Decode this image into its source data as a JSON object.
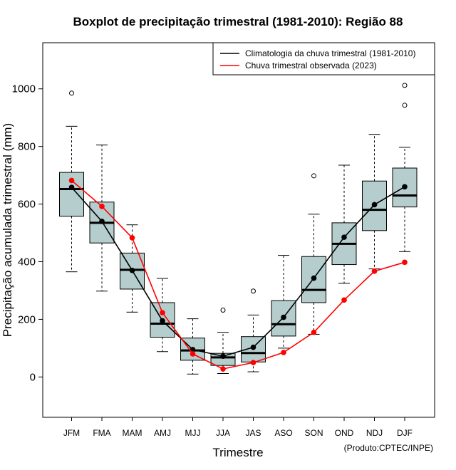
{
  "chart_data": {
    "type": "boxplot",
    "title": "Boxplot de precipitação trimestral (1981-2010): Região 88",
    "xlabel": "Trimestre",
    "ylabel": "Precipitação acumulada trimestral (mm)",
    "ylim": [
      -140,
      1160
    ],
    "yticks": [
      0,
      200,
      400,
      600,
      800,
      1000
    ],
    "categories": [
      "JFM",
      "FMA",
      "MAM",
      "AMJ",
      "MJJ",
      "JJA",
      "JAS",
      "ASO",
      "SON",
      "OND",
      "NDJ",
      "DJF"
    ],
    "boxes": [
      {
        "whisker_low": 365,
        "q1": 558,
        "median": 652,
        "q3": 710,
        "whisker_high": 870,
        "outliers": [
          985
        ]
      },
      {
        "whisker_low": 298,
        "q1": 465,
        "median": 535,
        "q3": 607,
        "whisker_high": 805,
        "outliers": []
      },
      {
        "whisker_low": 225,
        "q1": 305,
        "median": 372,
        "q3": 430,
        "whisker_high": 528,
        "outliers": []
      },
      {
        "whisker_low": 88,
        "q1": 138,
        "median": 185,
        "q3": 258,
        "whisker_high": 342,
        "outliers": []
      },
      {
        "whisker_low": 10,
        "q1": 58,
        "median": 92,
        "q3": 135,
        "whisker_high": 202,
        "outliers": []
      },
      {
        "whisker_low": 12,
        "q1": 40,
        "median": 68,
        "q3": 82,
        "whisker_high": 155,
        "outliers": [
          232
        ]
      },
      {
        "whisker_low": 18,
        "q1": 52,
        "median": 83,
        "q3": 140,
        "whisker_high": 215,
        "outliers": [
          298
        ]
      },
      {
        "whisker_low": 100,
        "q1": 142,
        "median": 183,
        "q3": 265,
        "whisker_high": 422,
        "outliers": []
      },
      {
        "whisker_low": 148,
        "q1": 258,
        "median": 302,
        "q3": 418,
        "whisker_high": 565,
        "outliers": [
          698
        ]
      },
      {
        "whisker_low": 325,
        "q1": 390,
        "median": 462,
        "q3": 535,
        "whisker_high": 735,
        "outliers": []
      },
      {
        "whisker_low": 375,
        "q1": 508,
        "median": 580,
        "q3": 680,
        "whisker_high": 842,
        "outliers": []
      },
      {
        "whisker_low": 435,
        "q1": 590,
        "median": 630,
        "q3": 725,
        "whisker_high": 797,
        "outliers": [
          943,
          1012
        ]
      }
    ],
    "series": [
      {
        "name": "Climatologia da chuva trimestral (1981-2010)",
        "color": "#000000",
        "values": [
          658,
          540,
          370,
          195,
          95,
          72,
          103,
          207,
          343,
          485,
          598,
          660
        ]
      },
      {
        "name": "Chuva trimestral observada (2023)",
        "color": "#ff0000",
        "values": [
          682,
          592,
          483,
          223,
          80,
          28,
          50,
          85,
          155,
          267,
          367,
          398
        ]
      }
    ],
    "legend_position": "top-right",
    "box_fill": "#b5cdcd",
    "credit": "(Produto:CPTEC/INPE)"
  }
}
